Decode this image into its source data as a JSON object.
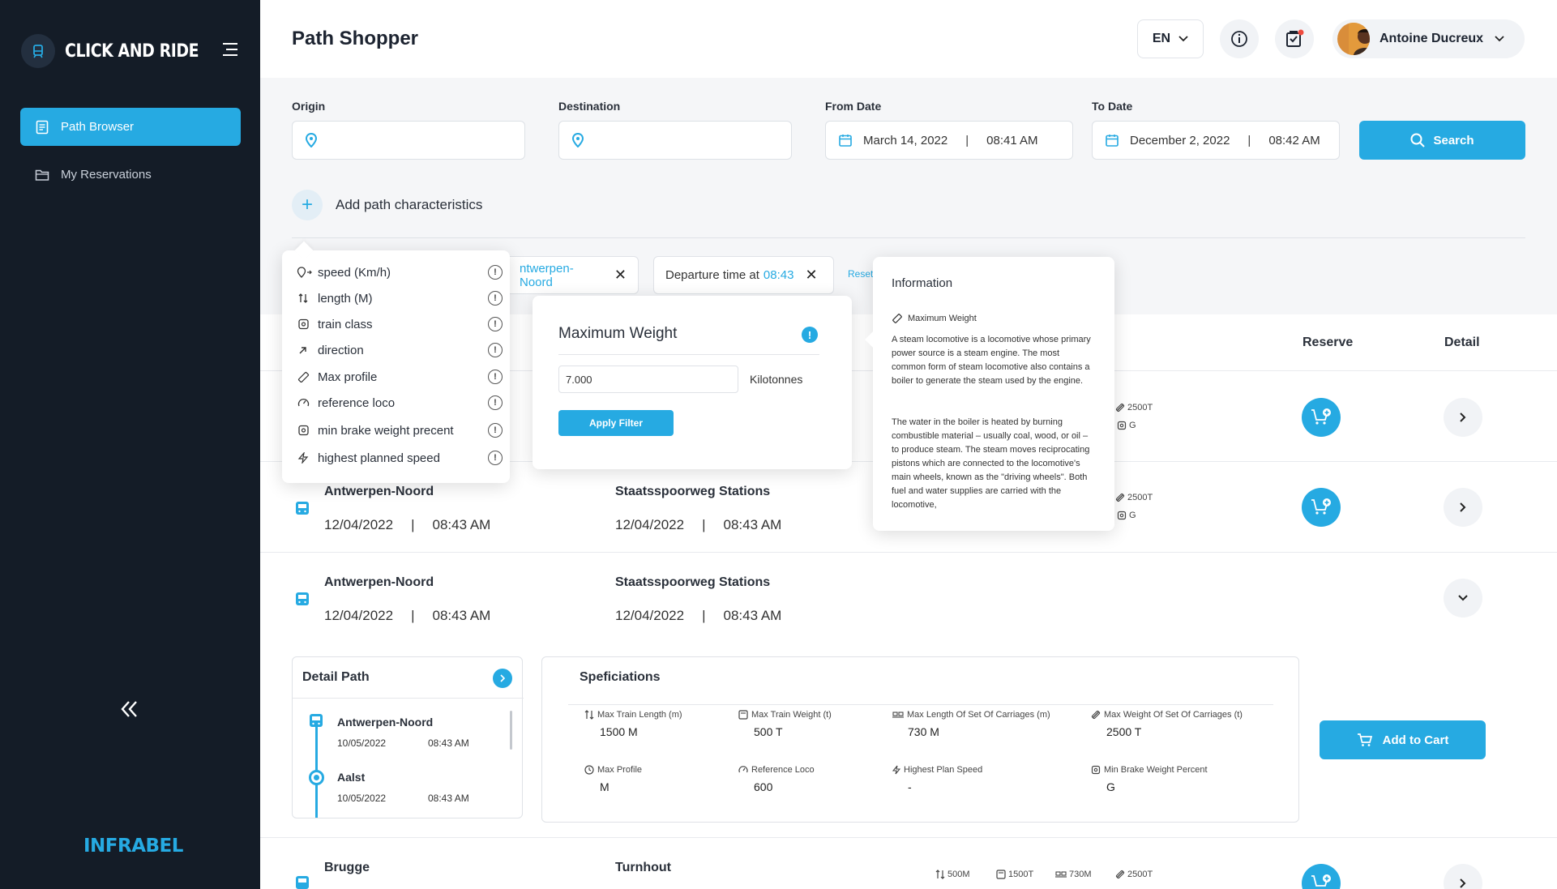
{
  "app": {
    "name": "CLICK AND RIDE",
    "brand": "INFRABEL",
    "accent": "#26aae2",
    "sidebar_bg": "#141c27"
  },
  "sidebar": {
    "items": [
      {
        "label": "Path Browser",
        "active": true
      },
      {
        "label": "My Reservations",
        "active": false
      }
    ]
  },
  "header": {
    "title": "Path Shopper",
    "language": "EN",
    "user_name": "Antoine Ducreux"
  },
  "search": {
    "origin_label": "Origin",
    "destination_label": "Destination",
    "from_label": "From Date",
    "from_date": "March 14, 2022",
    "from_time": "08:41 AM",
    "to_label": "To Date",
    "to_date": "December 2, 2022",
    "to_time": "08:42 AM",
    "search_label": "Search",
    "add_characteristics": "Add path characteristics"
  },
  "filters": {
    "chip1_value": "ntwerpen-Noord",
    "chip2_prefix": "Departure time at",
    "chip2_value": "08:43",
    "reset": "Reset"
  },
  "table": {
    "headers": {
      "reserve": "Reserve",
      "detail": "Detail"
    },
    "rows": [
      {
        "weight": "2500T",
        "class": "G"
      },
      {
        "origin": "Antwerpen-Noord",
        "dep_date": "12/04/2022",
        "dep_time": "08:43 AM",
        "destination": "Staatsspoorweg Stations",
        "arr_date": "12/04/2022",
        "arr_time": "08:43 AM",
        "weight": "2500T",
        "class": "G"
      },
      {
        "origin": "Antwerpen-Noord",
        "dep_date": "12/04/2022",
        "dep_time": "08:43 AM",
        "destination": "Staatsspoorweg Stations",
        "arr_date": "12/04/2022",
        "arr_time": "08:43 AM"
      },
      {
        "origin": "Brugge",
        "destination": "Turnhout",
        "length": "500M",
        "weight_total": "1500T",
        "carriage_length": "730M",
        "weight": "2500T"
      }
    ]
  },
  "detail_path": {
    "title": "Detail Path",
    "stops": [
      {
        "name": "Antwerpen-Noord",
        "date": "10/05/2022",
        "time": "08:43 AM"
      },
      {
        "name": "Aalst",
        "date": "10/05/2022",
        "time": "08:43 AM"
      }
    ]
  },
  "specifications": {
    "title": "Speficiations",
    "items": [
      {
        "label": "Max Train Length (m)",
        "value": "1500 M"
      },
      {
        "label": "Max Train Weight (t)",
        "value": "500 T"
      },
      {
        "label": "Max Length Of Set Of Carriages (m)",
        "value": "730 M"
      },
      {
        "label": "Max Weight Of Set Of Carriages (t)",
        "value": "2500 T"
      },
      {
        "label": "Max Profile",
        "value": "M"
      },
      {
        "label": "Reference Loco",
        "value": "600"
      },
      {
        "label": "Highest Plan Speed",
        "value": "-"
      },
      {
        "label": "Min Brake Weight Percent",
        "value": "G"
      }
    ],
    "add_to_cart": "Add to Cart"
  },
  "characteristics_menu": {
    "items": [
      "speed (Km/h)",
      "length (M)",
      "train class",
      "direction",
      "Max profile",
      "reference loco",
      "min brake weight precent",
      "highest planned speed"
    ]
  },
  "max_weight_popover": {
    "title": "Maximum Weight",
    "value": "7.000",
    "unit": "Kilotonnes",
    "apply": "Apply Filter"
  },
  "info_popover": {
    "title": "Information",
    "subtitle": "Maximum Weight",
    "paragraph1": "A steam locomotive is a locomotive whose primary power source is a steam engine. The most common form of steam locomotive also contains a boiler to generate the steam used by the engine.",
    "paragraph2": "The water in the boiler is heated by burning combustible material – usually coal, wood, or oil – to produce steam. The steam moves reciprocating pistons which are connected to the locomotive's main wheels, known as the \"driving wheels\". Both fuel and water supplies are carried with the locomotive,"
  }
}
